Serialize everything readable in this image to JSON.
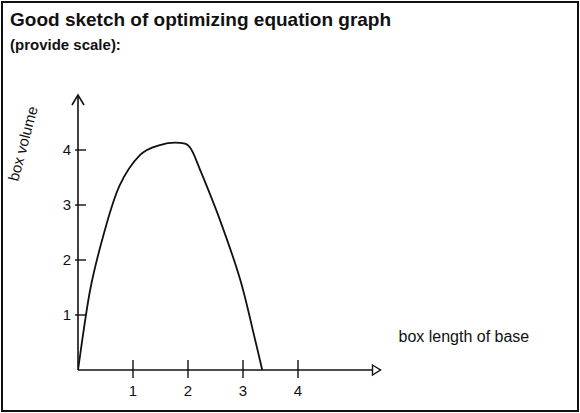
{
  "chart_data": {
    "type": "line",
    "title": "Good sketch of optimizing equation graph",
    "subtitle": "(provide scale):",
    "x_label": "box length of base",
    "y_label": "box volume",
    "x": [
      0,
      0.22,
      0.49,
      0.76,
      1.13,
      1.49,
      1.85,
      2.04,
      2.22,
      2.58,
      2.95,
      3.22,
      3.35
    ],
    "values": [
      0,
      1.45,
      2.55,
      3.36,
      3.91,
      4.09,
      4.13,
      4.04,
      3.64,
      2.73,
      1.64,
      0.55,
      0
    ],
    "color": "#111111",
    "xlim": [
      0,
      5.5
    ],
    "ylim": [
      0,
      5
    ],
    "xticks": [
      1,
      2,
      3,
      4
    ],
    "yticks": [
      1,
      2,
      3,
      4
    ],
    "grid": false
  }
}
